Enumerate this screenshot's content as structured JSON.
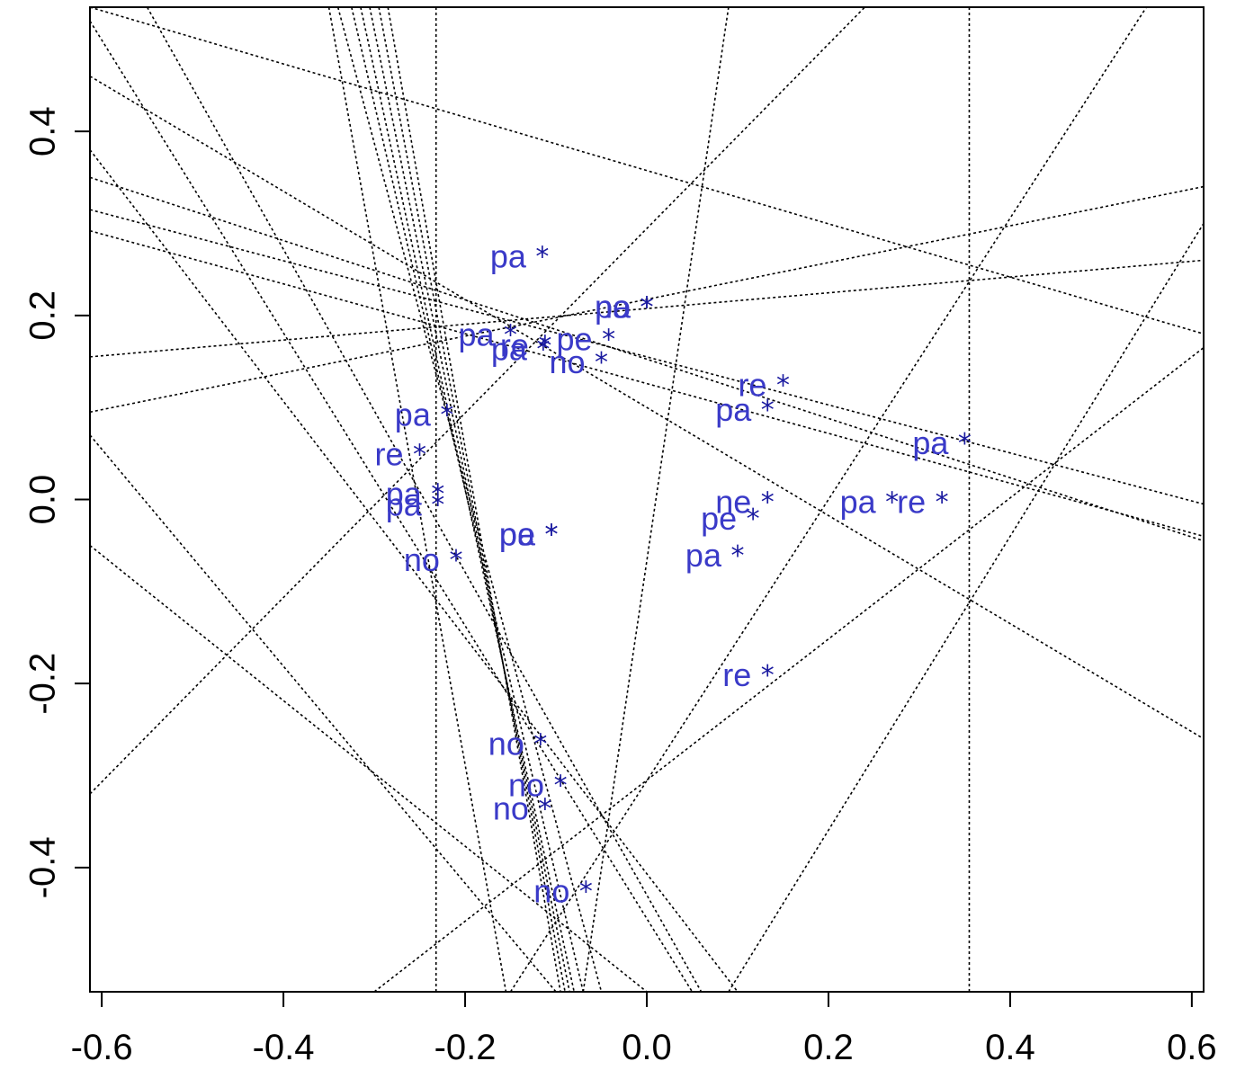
{
  "chart_data": {
    "type": "scatter",
    "title": "",
    "xlabel": "",
    "ylabel": "",
    "xlim": [
      -0.613,
      0.613
    ],
    "ylim": [
      -0.535,
      0.535
    ],
    "grid": false,
    "x_ticks": [
      "-0.6",
      "-0.4",
      "-0.2",
      "0.0",
      "0.2",
      "0.4",
      "0.6"
    ],
    "y_ticks": [
      "-0.4",
      "-0.2",
      "0.0",
      "0.2",
      "0.4"
    ],
    "marker": "*",
    "points": [
      {
        "label": "pa",
        "x": -0.115,
        "y": 0.265
      },
      {
        "label": "no",
        "x": 0.0,
        "y": 0.21
      },
      {
        "label": "pa",
        "x": 0.0,
        "y": 0.21
      },
      {
        "label": "pa",
        "x": -0.15,
        "y": 0.18
      },
      {
        "label": "re",
        "x": -0.112,
        "y": 0.168
      },
      {
        "label": "pa",
        "x": -0.114,
        "y": 0.164
      },
      {
        "label": "pe",
        "x": -0.042,
        "y": 0.175
      },
      {
        "label": "no",
        "x": -0.05,
        "y": 0.15
      },
      {
        "label": "re",
        "x": 0.15,
        "y": 0.125
      },
      {
        "label": "pa",
        "x": 0.133,
        "y": 0.098
      },
      {
        "label": "pa",
        "x": -0.22,
        "y": 0.093
      },
      {
        "label": "pa",
        "x": 0.35,
        "y": 0.062
      },
      {
        "label": "re",
        "x": -0.25,
        "y": 0.05
      },
      {
        "label": "pa",
        "x": -0.23,
        "y": 0.007
      },
      {
        "label": "pa",
        "x": -0.23,
        "y": -0.005
      },
      {
        "label": "pa",
        "x": -0.105,
        "y": -0.037
      },
      {
        "label": "pe",
        "x": -0.105,
        "y": -0.037
      },
      {
        "label": "ne",
        "x": 0.133,
        "y": -0.002
      },
      {
        "label": "pe",
        "x": 0.117,
        "y": -0.02
      },
      {
        "label": "pa",
        "x": 0.27,
        "y": -0.002
      },
      {
        "label": "re",
        "x": 0.325,
        "y": -0.002
      },
      {
        "label": "pa",
        "x": 0.1,
        "y": -0.06
      },
      {
        "label": "no",
        "x": -0.21,
        "y": -0.065
      },
      {
        "label": "re",
        "x": 0.133,
        "y": -0.19
      },
      {
        "label": "no",
        "x": -0.117,
        "y": -0.265
      },
      {
        "label": "no",
        "x": -0.095,
        "y": -0.31
      },
      {
        "label": "no",
        "x": -0.112,
        "y": -0.335
      },
      {
        "label": "no",
        "x": -0.067,
        "y": -0.425
      }
    ],
    "reference_lines": [
      {
        "x1": -0.232,
        "y1": 0.535,
        "x2": -0.232,
        "y2": -0.535
      },
      {
        "x1": 0.355,
        "y1": 0.535,
        "x2": 0.355,
        "y2": -0.535
      },
      {
        "x1": -0.35,
        "y1": 0.535,
        "x2": -0.155,
        "y2": -0.535
      },
      {
        "x1": -0.34,
        "y1": 0.535,
        "x2": -0.05,
        "y2": -0.535
      },
      {
        "x1": -0.325,
        "y1": 0.535,
        "x2": -0.07,
        "y2": -0.535
      },
      {
        "x1": -0.315,
        "y1": 0.535,
        "x2": -0.08,
        "y2": -0.535
      },
      {
        "x1": -0.305,
        "y1": 0.535,
        "x2": -0.085,
        "y2": -0.535
      },
      {
        "x1": -0.295,
        "y1": 0.535,
        "x2": -0.09,
        "y2": -0.535
      },
      {
        "x1": -0.285,
        "y1": 0.535,
        "x2": -0.095,
        "y2": -0.535
      },
      {
        "x1": -0.613,
        "y1": 0.52,
        "x2": 0.05,
        "y2": -0.535
      },
      {
        "x1": -0.55,
        "y1": 0.535,
        "x2": 0.06,
        "y2": -0.535
      },
      {
        "x1": -0.613,
        "y1": 0.38,
        "x2": 0.1,
        "y2": -0.535
      },
      {
        "x1": -0.613,
        "y1": 0.07,
        "x2": -0.1,
        "y2": -0.535
      },
      {
        "x1": -0.613,
        "y1": -0.05,
        "x2": 0.0,
        "y2": -0.535
      },
      {
        "x1": -0.613,
        "y1": 0.46,
        "x2": 0.613,
        "y2": -0.26
      },
      {
        "x1": -0.613,
        "y1": 0.35,
        "x2": 0.613,
        "y2": -0.045
      },
      {
        "x1": -0.613,
        "y1": 0.315,
        "x2": 0.613,
        "y2": -0.005
      },
      {
        "x1": -0.613,
        "y1": 0.292,
        "x2": 0.613,
        "y2": -0.04
      },
      {
        "x1": -0.613,
        "y1": 0.155,
        "x2": 0.613,
        "y2": 0.26
      },
      {
        "x1": -0.613,
        "y1": 0.095,
        "x2": 0.613,
        "y2": 0.34
      },
      {
        "x1": -0.613,
        "y1": 0.535,
        "x2": 0.613,
        "y2": 0.18
      },
      {
        "x1": -0.613,
        "y1": -0.32,
        "x2": 0.24,
        "y2": 0.535
      },
      {
        "x1": -0.15,
        "y1": -0.535,
        "x2": 0.55,
        "y2": 0.535
      },
      {
        "x1": -0.3,
        "y1": -0.535,
        "x2": 0.613,
        "y2": 0.165
      },
      {
        "x1": 0.09,
        "y1": -0.535,
        "x2": 0.613,
        "y2": 0.3
      },
      {
        "x1": -0.07,
        "y1": -0.535,
        "x2": 0.09,
        "y2": 0.535
      }
    ]
  }
}
